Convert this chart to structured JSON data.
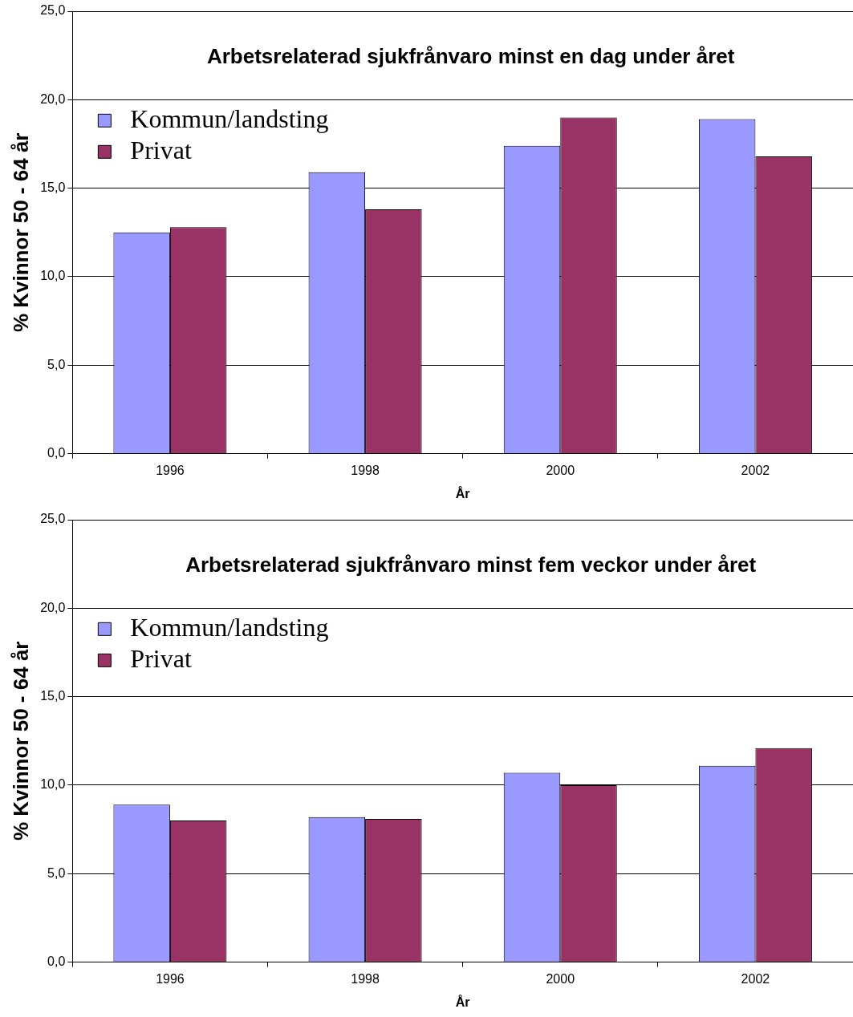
{
  "chart_data": [
    {
      "type": "bar",
      "title": "Arbetsrelaterad sjukfrånvaro minst en dag under året",
      "xlabel": "År",
      "ylabel": "% Kvinnor 50 - 64 år",
      "categories": [
        "1996",
        "1998",
        "2000",
        "2002"
      ],
      "series": [
        {
          "name": "Kommun/landsting",
          "color": "#9999ff",
          "values": [
            12.5,
            15.9,
            17.4,
            18.9
          ]
        },
        {
          "name": "Privat",
          "color": "#993366",
          "values": [
            12.8,
            13.8,
            19.0,
            16.8
          ]
        }
      ],
      "ylim": [
        0,
        25
      ],
      "yticks": [
        {
          "value": 0,
          "label": "0,0"
        },
        {
          "value": 5,
          "label": "5,0"
        },
        {
          "value": 10,
          "label": "10,0"
        },
        {
          "value": 15,
          "label": "15,0"
        },
        {
          "value": 20,
          "label": "20,0"
        },
        {
          "value": 25,
          "label": "25,0"
        }
      ],
      "grid": "y",
      "legend": "top left"
    },
    {
      "type": "bar",
      "title": "Arbetsrelaterad sjukfrånvaro minst fem veckor under året",
      "xlabel": "År",
      "ylabel": "% Kvinnor 50 - 64 år",
      "categories": [
        "1996",
        "1998",
        "2000",
        "2002"
      ],
      "series": [
        {
          "name": "Kommun/landsting",
          "color": "#9999ff",
          "values": [
            8.9,
            8.2,
            10.7,
            11.1
          ]
        },
        {
          "name": "Privat",
          "color": "#993366",
          "values": [
            8.0,
            8.1,
            10.0,
            12.1
          ]
        }
      ],
      "ylim": [
        0,
        25
      ],
      "yticks": [
        {
          "value": 0,
          "label": "0,0"
        },
        {
          "value": 5,
          "label": "5,0"
        },
        {
          "value": 10,
          "label": "10,0"
        },
        {
          "value": 15,
          "label": "15,0"
        },
        {
          "value": 20,
          "label": "20,0"
        },
        {
          "value": 25,
          "label": "25,0"
        }
      ],
      "grid": "y",
      "legend": "top left"
    }
  ]
}
